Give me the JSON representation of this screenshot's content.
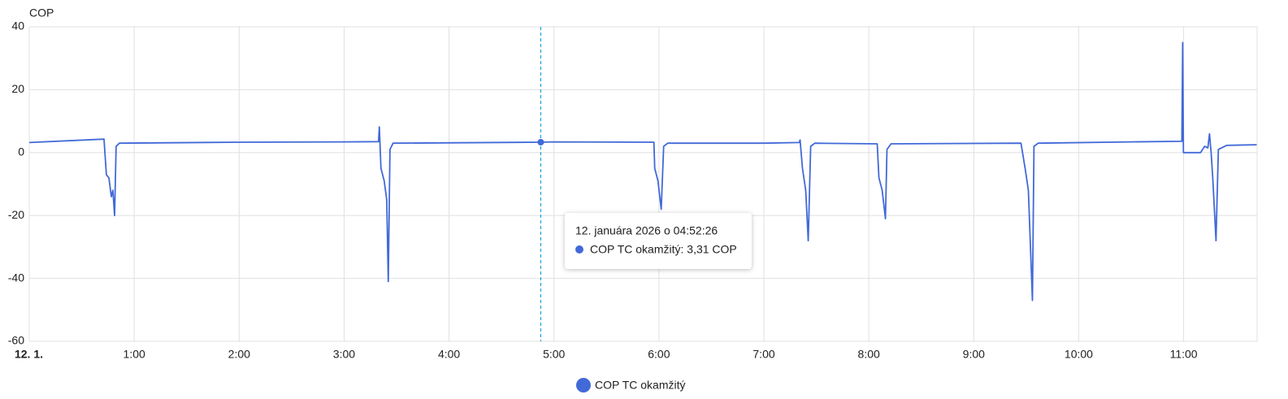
{
  "chart_data": {
    "type": "line",
    "y_label": "COP",
    "x": [
      0,
      0.712,
      0.735,
      0.759,
      0.782,
      0.797,
      0.813,
      0.828,
      0.859,
      2.0,
      3.0,
      3.328,
      3.336,
      3.351,
      3.382,
      3.406,
      3.421,
      3.437,
      3.467,
      4.874,
      5.0,
      5.952,
      5.96,
      5.991,
      6.022,
      6.045,
      6.084,
      7.0,
      7.337,
      7.345,
      7.368,
      7.399,
      7.423,
      7.446,
      7.485,
      8.08,
      8.096,
      8.127,
      8.158,
      8.173,
      8.212,
      9.45,
      9.489,
      9.52,
      9.559,
      9.574,
      9.613,
      10.5,
      10.983,
      10.991,
      10.998,
      11.161,
      11.2,
      11.231,
      11.246,
      11.262,
      11.277,
      11.308,
      11.331,
      11.409,
      11.695
    ],
    "series": [
      {
        "name": "COP TC okamžitý",
        "color": "#4169d8",
        "values": [
          3.2,
          4.3,
          -7,
          -8,
          -14,
          -12,
          -20,
          2,
          3,
          3.3,
          3.4,
          3.5,
          8.2,
          -5,
          -9,
          -15,
          -41,
          1,
          3,
          3.31,
          3.4,
          3.3,
          -5,
          -9,
          -18,
          2,
          3,
          3.0,
          3.2,
          4,
          -5,
          -12,
          -28,
          2,
          3,
          2.8,
          -8,
          -12,
          -21,
          1,
          2.8,
          3,
          -5,
          -12,
          -47,
          2,
          3,
          3.4,
          3.6,
          35,
          0,
          0,
          2,
          1.5,
          6,
          0,
          -8,
          -28,
          1,
          2.3,
          2.5
        ]
      }
    ],
    "xlim": [
      0,
      11.7
    ],
    "xticks": [
      {
        "value": 0,
        "label": "12. 1."
      },
      {
        "value": 1,
        "label": "1:00"
      },
      {
        "value": 2,
        "label": "2:00"
      },
      {
        "value": 3,
        "label": "3:00"
      },
      {
        "value": 4,
        "label": "4:00"
      },
      {
        "value": 5,
        "label": "5:00"
      },
      {
        "value": 6,
        "label": "6:00"
      },
      {
        "value": 7,
        "label": "7:00"
      },
      {
        "value": 8,
        "label": "8:00"
      },
      {
        "value": 9,
        "label": "9:00"
      },
      {
        "value": 10,
        "label": "10:00"
      },
      {
        "value": 11,
        "label": "11:00"
      }
    ],
    "ylim": [
      -60,
      40
    ],
    "yticks": [
      -60,
      -40,
      -20,
      0,
      20,
      40
    ],
    "grid": true,
    "tooltip": {
      "x": 4.874,
      "value": 3.31,
      "title": "12. januára 2026 o 04:52:26",
      "label": "COP TC okamžitý: 3,31 COP"
    }
  }
}
